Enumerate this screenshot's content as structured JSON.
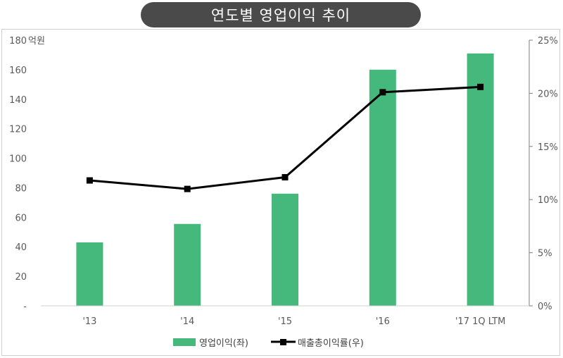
{
  "title": "연도별 영업이익 추이",
  "chart_data": {
    "type": "bar",
    "categories": [
      "'13",
      "'14",
      "'15",
      "'16",
      "'17 1Q LTM"
    ],
    "series": [
      {
        "name": "영업이익(좌)",
        "type": "bar",
        "axis": "left",
        "color": "#45b87c",
        "values": [
          43,
          55.5,
          76,
          160,
          171
        ]
      },
      {
        "name": "매출총이익률(우)",
        "type": "line",
        "axis": "right",
        "color": "#000000",
        "values": [
          11.8,
          11.0,
          12.1,
          20.1,
          20.6
        ]
      }
    ],
    "left_axis": {
      "unit": "억원",
      "range": [
        0,
        180
      ],
      "ticks": [
        0,
        20,
        40,
        60,
        80,
        100,
        120,
        140,
        160,
        180
      ],
      "tick_labels": [
        "-",
        "20",
        "40",
        "60",
        "80",
        "100",
        "120",
        "140",
        "160",
        "180"
      ]
    },
    "right_axis": {
      "range": [
        0,
        25
      ],
      "ticks": [
        0,
        5,
        10,
        15,
        20,
        25
      ],
      "tick_labels": [
        "0%",
        "5%",
        "10%",
        "15%",
        "20%",
        "25%"
      ]
    },
    "grid": false,
    "legend_position": "bottom"
  }
}
